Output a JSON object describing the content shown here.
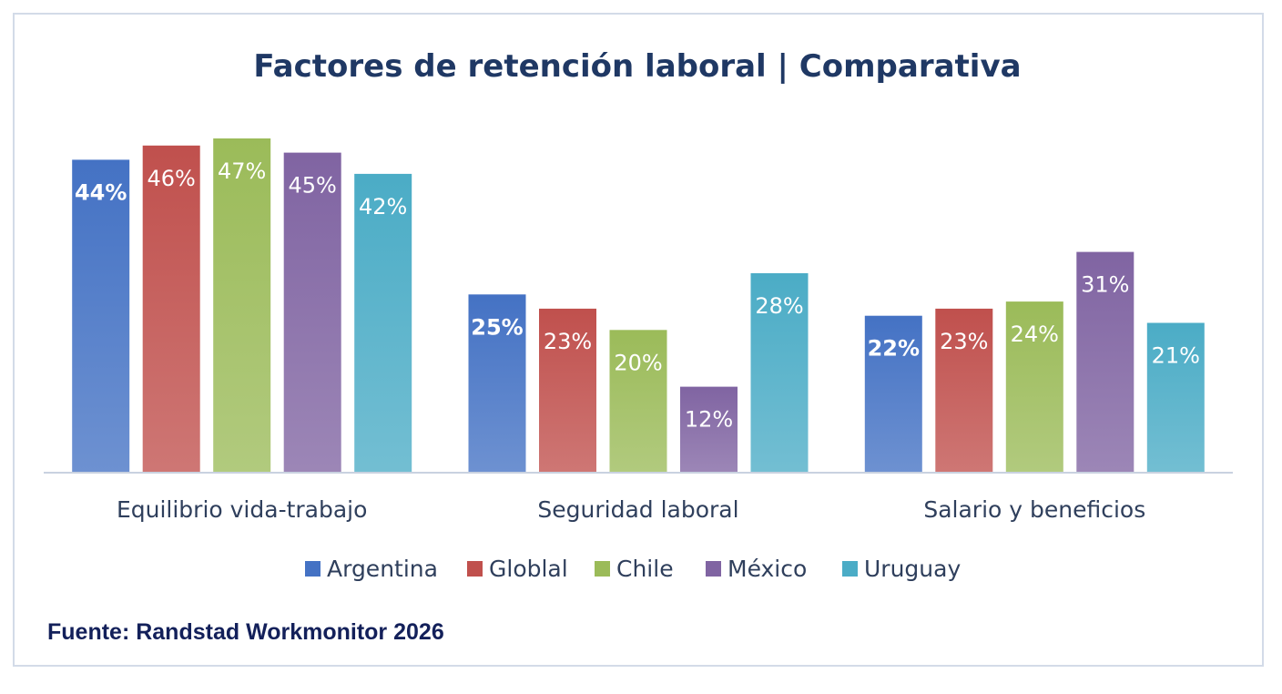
{
  "source": "Fuente: Randstad Workmonitor 2026",
  "chart_data": {
    "type": "bar",
    "title": "Factores de retención laboral | Comparativa",
    "categories": [
      "Equilibrio vida-trabajo",
      "Seguridad laboral",
      "Salario y beneficios"
    ],
    "series": [
      {
        "name": "Argentina",
        "values": [
          44,
          25,
          22
        ],
        "color": "#4472c4",
        "label_color": "#ffffff",
        "label_bold": true
      },
      {
        "name": "Globlal",
        "values": [
          46,
          23,
          23
        ],
        "color": "#c0504d",
        "label_color": "#ffffff",
        "label_bold": false
      },
      {
        "name": "Chile",
        "values": [
          47,
          20,
          24
        ],
        "color": "#9bbb59",
        "label_color": "#ffffff",
        "label_bold": false
      },
      {
        "name": "México",
        "values": [
          45,
          12,
          31
        ],
        "color": "#8064a2",
        "label_color": "#ffffff",
        "label_bold": false
      },
      {
        "name": "Uruguay",
        "values": [
          42,
          28,
          21
        ],
        "color": "#4bacc6",
        "label_color": "#ffffff",
        "label_bold": false
      }
    ],
    "value_suffix": "%",
    "ylim": [
      0,
      47
    ],
    "grid": false,
    "legend": "bottom",
    "colors": {
      "title": "#1f3864",
      "axis_text": "#2f3f5c",
      "axis_line": "#c9d2e0"
    }
  }
}
